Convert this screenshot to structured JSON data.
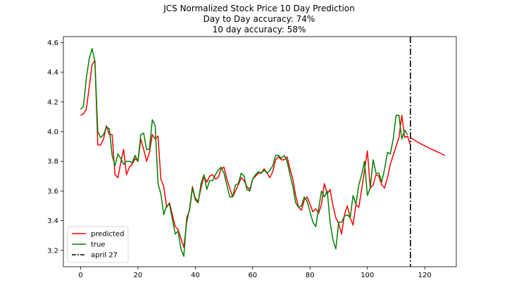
{
  "chart_data": {
    "type": "line",
    "title": "JCS Normalized Stock Price 10 Day Prediction",
    "subtitle_lines": [
      "Day to Day accuracy: 74%",
      "10 day accuracy: 58%"
    ],
    "xlabel": "",
    "ylabel": "",
    "xlim": [
      -6,
      131
    ],
    "ylim": [
      3.09,
      4.64
    ],
    "xticks": [
      0,
      20,
      40,
      60,
      80,
      100,
      120
    ],
    "yticks": [
      3.2,
      3.4,
      3.6,
      3.8,
      4.0,
      4.2,
      4.4,
      4.6
    ],
    "grid": false,
    "legend_placement": "lower-left",
    "colors": {
      "predicted": "#ff0000",
      "true": "#008000",
      "marker": "#000000"
    },
    "series": [
      {
        "name": "predicted",
        "x_start": 0,
        "values": [
          4.11,
          4.12,
          4.15,
          4.3,
          4.45,
          4.48,
          3.91,
          3.91,
          3.95,
          4.04,
          3.98,
          3.98,
          3.71,
          3.69,
          3.79,
          3.88,
          3.71,
          3.76,
          3.78,
          3.82,
          3.8,
          3.95,
          3.88,
          3.8,
          3.86,
          3.98,
          3.95,
          3.97,
          3.68,
          3.63,
          3.49,
          3.52,
          3.44,
          3.36,
          3.34,
          3.28,
          3.22,
          3.39,
          3.48,
          3.63,
          3.55,
          3.53,
          3.62,
          3.7,
          3.66,
          3.7,
          3.71,
          3.68,
          3.69,
          3.75,
          3.76,
          3.68,
          3.62,
          3.56,
          3.6,
          3.64,
          3.69,
          3.67,
          3.63,
          3.61,
          3.68,
          3.7,
          3.72,
          3.72,
          3.75,
          3.72,
          3.69,
          3.73,
          3.81,
          3.83,
          3.81,
          3.81,
          3.83,
          3.75,
          3.68,
          3.57,
          3.49,
          3.47,
          3.54,
          3.56,
          3.51,
          3.46,
          3.48,
          3.45,
          3.51,
          3.65,
          3.58,
          3.61,
          3.5,
          3.42,
          3.38,
          3.31,
          3.44,
          3.5,
          3.42,
          3.37,
          3.51,
          3.49,
          3.61,
          3.74,
          3.87,
          3.62,
          3.64,
          3.71,
          3.7,
          3.64,
          3.62,
          3.69,
          3.78,
          3.84,
          3.9,
          3.96,
          4.11,
          3.96,
          3.97,
          3.91
        ],
        "forecast_values": [
          3.96,
          3.948,
          3.936,
          3.925,
          3.914,
          3.904,
          3.894,
          3.885,
          3.876,
          3.867,
          3.858,
          3.849,
          3.84
        ]
      },
      {
        "name": "true",
        "x_start": 0,
        "values": [
          4.15,
          4.17,
          4.36,
          4.49,
          4.56,
          4.47,
          4.0,
          3.96,
          3.98,
          4.03,
          4.02,
          3.84,
          3.77,
          3.85,
          3.82,
          3.78,
          3.8,
          3.8,
          3.79,
          3.84,
          3.8,
          3.98,
          3.99,
          3.88,
          3.88,
          4.08,
          4.04,
          3.65,
          3.58,
          3.44,
          3.5,
          3.51,
          3.41,
          3.31,
          3.33,
          3.21,
          3.16,
          3.42,
          3.47,
          3.62,
          3.54,
          3.52,
          3.65,
          3.71,
          3.61,
          3.67,
          3.67,
          3.71,
          3.74,
          3.76,
          3.72,
          3.64,
          3.56,
          3.56,
          3.64,
          3.65,
          3.72,
          3.7,
          3.61,
          3.6,
          3.68,
          3.71,
          3.73,
          3.72,
          3.74,
          3.72,
          3.74,
          3.77,
          3.84,
          3.84,
          3.82,
          3.84,
          3.8,
          3.71,
          3.63,
          3.52,
          3.49,
          3.5,
          3.56,
          3.53,
          3.46,
          3.39,
          3.36,
          3.48,
          3.6,
          3.56,
          3.6,
          3.39,
          3.27,
          3.21,
          3.39,
          3.39,
          3.43,
          3.44,
          3.42,
          3.57,
          3.51,
          3.64,
          3.71,
          3.8,
          3.57,
          3.62,
          3.81,
          3.72,
          3.72,
          3.66,
          3.75,
          3.86,
          3.85,
          3.95,
          4.11,
          4.11,
          3.95,
          4.01,
          3.98
        ]
      }
    ],
    "vline": {
      "x": 115,
      "label": "april 27",
      "style": "dash-dot"
    },
    "legend": [
      {
        "label": "predicted",
        "style": "solid",
        "color_key": "predicted"
      },
      {
        "label": "true",
        "style": "solid",
        "color_key": "true"
      },
      {
        "label": "april 27",
        "style": "dash-dot",
        "color_key": "marker"
      }
    ]
  }
}
